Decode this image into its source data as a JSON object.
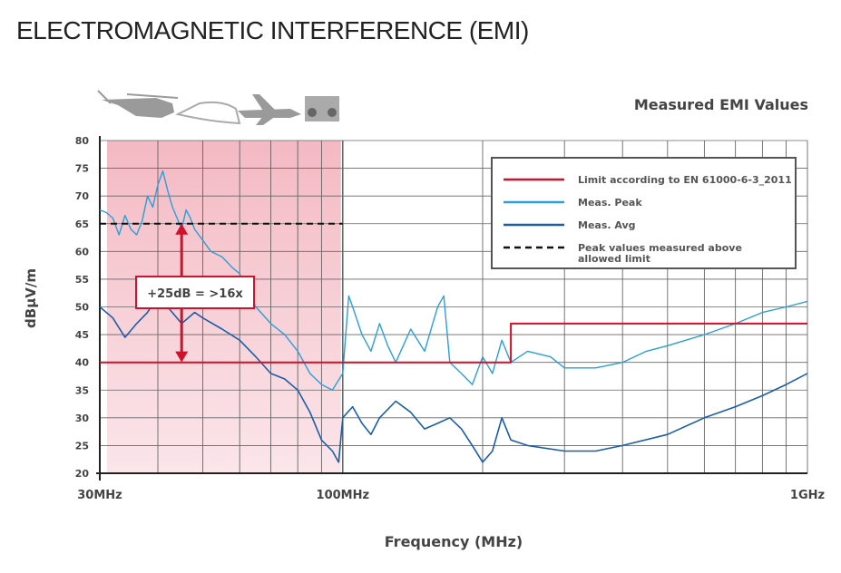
{
  "title": "ELECTROMAGNETIC INTERFERENCE (EMI)",
  "icons": [
    "helicopter-icon",
    "train-icon",
    "airplane-icon",
    "boombox-icon"
  ],
  "chart_data": {
    "type": "line",
    "title": "Measured EMI Values",
    "xlabel": "Frequency (MHz)",
    "ylabel": "dBμV/m",
    "xscale": "log",
    "xlim": [
      30,
      1000
    ],
    "ylim": [
      20,
      80
    ],
    "yticks": [
      20,
      25,
      30,
      35,
      40,
      45,
      50,
      55,
      60,
      65,
      70,
      75,
      80
    ],
    "xticks": [
      {
        "value": 30,
        "label": "30MHz"
      },
      {
        "value": 100,
        "label": "100MHz"
      },
      {
        "value": 1000,
        "label": "1GHz"
      }
    ],
    "grid": true,
    "legend_position": "top-right",
    "colors": {
      "limit": "#d0112b",
      "peak": "#2a9fd8",
      "avg": "#1a5ea8",
      "dashed": "#111111",
      "shade": "#f4b9c3"
    },
    "series": [
      {
        "name": "Limit according to EN 61000-6-3_2011",
        "style": "red",
        "x": [
          30,
          230,
          230,
          1000
        ],
        "y": [
          40,
          40,
          47,
          47
        ]
      },
      {
        "name": "Meas. Peak",
        "style": "peak",
        "x": [
          30,
          31,
          32,
          33,
          34,
          35,
          36,
          37,
          38,
          39,
          40,
          41,
          42,
          43,
          44,
          45,
          46,
          47,
          48,
          50,
          52,
          55,
          58,
          60,
          62,
          65,
          70,
          75,
          80,
          85,
          90,
          95,
          100,
          103,
          105,
          110,
          115,
          120,
          125,
          130,
          140,
          150,
          160,
          165,
          170,
          180,
          190,
          200,
          210,
          220,
          230,
          250,
          280,
          300,
          350,
          400,
          450,
          500,
          600,
          700,
          800,
          900,
          1000
        ],
        "y": [
          67.5,
          67,
          66,
          63,
          66.5,
          64,
          63,
          65.5,
          70,
          68,
          72,
          74.5,
          71,
          68,
          66,
          64,
          67.5,
          66,
          64,
          62,
          60,
          59,
          57,
          56,
          53,
          50,
          47,
          45,
          42,
          38,
          36,
          35,
          38,
          52,
          50,
          45,
          42,
          47,
          43,
          40,
          46,
          42,
          50,
          52,
          40,
          38,
          36,
          41,
          38,
          44,
          40,
          42,
          41,
          39,
          39,
          40,
          42,
          43,
          45,
          47,
          49,
          50,
          51
        ]
      },
      {
        "name": "Meas. Avg",
        "style": "avg",
        "x": [
          30,
          32,
          34,
          36,
          38,
          40,
          42,
          45,
          48,
          50,
          55,
          60,
          65,
          70,
          75,
          80,
          85,
          90,
          95,
          98,
          100,
          105,
          110,
          115,
          120,
          130,
          140,
          150,
          160,
          170,
          180,
          190,
          200,
          210,
          220,
          230,
          250,
          300,
          350,
          400,
          500,
          600,
          700,
          800,
          900,
          1000
        ],
        "y": [
          50,
          48,
          44.5,
          47,
          49,
          52,
          50,
          47,
          49,
          48,
          46,
          44,
          41,
          38,
          37,
          35,
          31,
          26,
          24,
          22,
          30,
          32,
          29,
          27,
          30,
          33,
          31,
          28,
          29,
          30,
          28,
          25,
          22,
          24,
          30,
          26,
          25,
          24,
          24,
          25,
          27,
          30,
          32,
          34,
          36,
          38
        ]
      },
      {
        "name": "Peak values measured above allowed limit",
        "style": "dashed",
        "x": [
          30,
          100
        ],
        "y": [
          65,
          65
        ]
      }
    ],
    "shaded_region": {
      "x": [
        30,
        100
      ],
      "y": [
        20,
        80
      ]
    },
    "annotation": {
      "text": "+25dB = >16x",
      "from": 40,
      "to": 65,
      "at_x": 45
    }
  }
}
